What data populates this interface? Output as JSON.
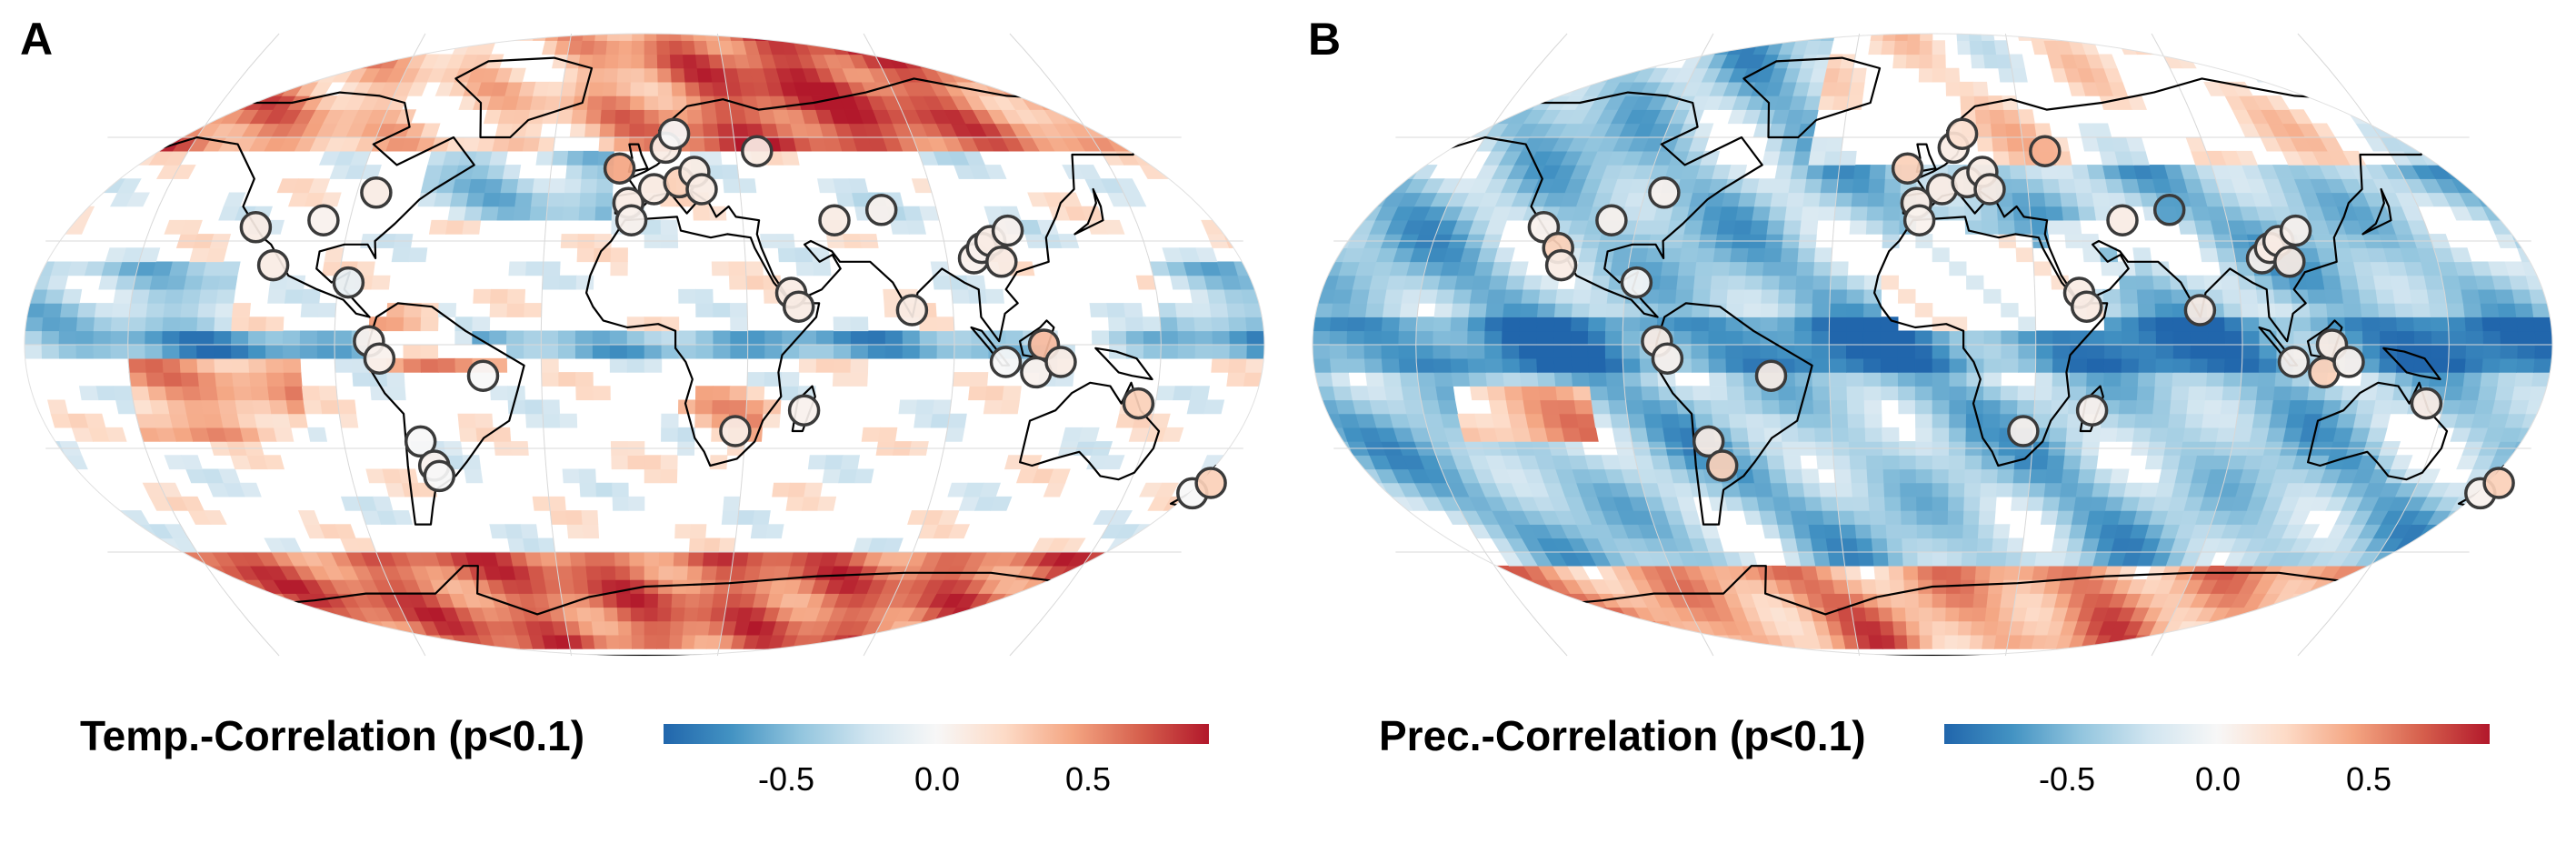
{
  "panels": [
    {
      "letter": "A",
      "colorbar_title": "Temp.-Correlation (p<0.1)",
      "colorbar_ticks": [
        "-0.5",
        "0.0",
        "0.5"
      ],
      "colorbar_range": [
        -0.9,
        0.9
      ],
      "pattern": "temperature",
      "sites": [
        {
          "lon": -118,
          "lat": 34,
          "r": 0.1
        },
        {
          "lon": -110,
          "lat": 23,
          "r": 0.1
        },
        {
          "lon": -98,
          "lat": 36,
          "r": 0.05
        },
        {
          "lon": -84,
          "lat": 44,
          "r": 0.1
        },
        {
          "lon": -87,
          "lat": 18,
          "r": -0.1
        },
        {
          "lon": -80,
          "lat": 1,
          "r": 0.05
        },
        {
          "lon": -77,
          "lat": -4,
          "r": 0.05
        },
        {
          "lon": -67,
          "lat": -28,
          "r": 0.0
        },
        {
          "lon": -64,
          "lat": -35,
          "r": 0.05
        },
        {
          "lon": -63,
          "lat": -38,
          "r": 0.0
        },
        {
          "lon": -47,
          "lat": -9,
          "r": 0.0
        },
        {
          "lon": -8,
          "lat": 51,
          "r": 0.5
        },
        {
          "lon": -5,
          "lat": 41,
          "r": 0.1
        },
        {
          "lon": -4,
          "lat": 36,
          "r": 0.05
        },
        {
          "lon": 3,
          "lat": 45,
          "r": 0.1
        },
        {
          "lon": 7,
          "lat": 57,
          "r": 0.1
        },
        {
          "lon": 10,
          "lat": 61,
          "r": 0.0
        },
        {
          "lon": 11,
          "lat": 47,
          "r": 0.3
        },
        {
          "lon": 16,
          "lat": 50,
          "r": 0.1
        },
        {
          "lon": 18,
          "lat": 45,
          "r": 0.1
        },
        {
          "lon": 43,
          "lat": 15,
          "r": 0.1
        },
        {
          "lon": 45,
          "lat": 11,
          "r": 0.1
        },
        {
          "lon": 37,
          "lat": 56,
          "r": 0.1
        },
        {
          "lon": 58,
          "lat": 36,
          "r": 0.1
        },
        {
          "lon": 73,
          "lat": 39,
          "r": 0.05
        },
        {
          "lon": 78,
          "lat": 10,
          "r": 0.1
        },
        {
          "lon": 98,
          "lat": 25,
          "r": 0.05
        },
        {
          "lon": 101,
          "lat": 28,
          "r": 0.05
        },
        {
          "lon": 104,
          "lat": 30,
          "r": 0.1
        },
        {
          "lon": 106,
          "lat": 24,
          "r": 0.1
        },
        {
          "lon": 110,
          "lat": 33,
          "r": 0.05
        },
        {
          "lon": 105,
          "lat": -5,
          "r": 0.0
        },
        {
          "lon": 116,
          "lat": 0,
          "r": 0.4
        },
        {
          "lon": 114,
          "lat": -8,
          "r": 0.05
        },
        {
          "lon": 121,
          "lat": -5,
          "r": 0.1
        },
        {
          "lon": 145,
          "lat": -17,
          "r": 0.3
        },
        {
          "lon": 47,
          "lat": -19,
          "r": 0.05
        },
        {
          "lon": 27,
          "lat": -25,
          "r": 0.1
        },
        {
          "lon": 171,
          "lat": -43,
          "r": 0.0
        },
        {
          "lon": 175,
          "lat": -40,
          "r": 0.3
        }
      ]
    },
    {
      "letter": "B",
      "colorbar_title": "Prec.-Correlation (p<0.1)",
      "colorbar_ticks": [
        "-0.5",
        "0.0",
        "0.5"
      ],
      "colorbar_range": [
        -0.9,
        0.9
      ],
      "pattern": "precipitation",
      "sites": [
        {
          "lon": -118,
          "lat": 34,
          "r": 0.05
        },
        {
          "lon": -112,
          "lat": 28,
          "r": 0.3
        },
        {
          "lon": -110,
          "lat": 23,
          "r": 0.1
        },
        {
          "lon": -98,
          "lat": 36,
          "r": 0.05
        },
        {
          "lon": -84,
          "lat": 44,
          "r": 0.05
        },
        {
          "lon": -87,
          "lat": 18,
          "r": 0.0
        },
        {
          "lon": -80,
          "lat": 1,
          "r": 0.1
        },
        {
          "lon": -77,
          "lat": -4,
          "r": 0.05
        },
        {
          "lon": -67,
          "lat": -28,
          "r": 0.1
        },
        {
          "lon": -64,
          "lat": -35,
          "r": 0.3
        },
        {
          "lon": -47,
          "lat": -9,
          "r": 0.1
        },
        {
          "lon": -8,
          "lat": 51,
          "r": 0.3
        },
        {
          "lon": -5,
          "lat": 41,
          "r": 0.1
        },
        {
          "lon": -4,
          "lat": 36,
          "r": 0.05
        },
        {
          "lon": 3,
          "lat": 45,
          "r": 0.1
        },
        {
          "lon": 7,
          "lat": 57,
          "r": 0.1
        },
        {
          "lon": 10,
          "lat": 61,
          "r": 0.2
        },
        {
          "lon": 11,
          "lat": 47,
          "r": 0.1
        },
        {
          "lon": 16,
          "lat": 50,
          "r": 0.1
        },
        {
          "lon": 18,
          "lat": 45,
          "r": 0.1
        },
        {
          "lon": 43,
          "lat": 15,
          "r": 0.1
        },
        {
          "lon": 45,
          "lat": 11,
          "r": 0.1
        },
        {
          "lon": 37,
          "lat": 56,
          "r": 0.45
        },
        {
          "lon": 58,
          "lat": 36,
          "r": 0.1
        },
        {
          "lon": 73,
          "lat": 39,
          "r": -0.7
        },
        {
          "lon": 78,
          "lat": 10,
          "r": 0.1
        },
        {
          "lon": 98,
          "lat": 25,
          "r": 0.05
        },
        {
          "lon": 101,
          "lat": 28,
          "r": 0.1
        },
        {
          "lon": 104,
          "lat": 30,
          "r": 0.1
        },
        {
          "lon": 106,
          "lat": 24,
          "r": 0.1
        },
        {
          "lon": 110,
          "lat": 33,
          "r": 0.05
        },
        {
          "lon": 105,
          "lat": -5,
          "r": 0.05
        },
        {
          "lon": 116,
          "lat": 0,
          "r": 0.1
        },
        {
          "lon": 114,
          "lat": -8,
          "r": 0.3
        },
        {
          "lon": 121,
          "lat": -5,
          "r": 0.05
        },
        {
          "lon": 145,
          "lat": -17,
          "r": 0.1
        },
        {
          "lon": 47,
          "lat": -19,
          "r": 0.05
        },
        {
          "lon": 27,
          "lat": -25,
          "r": 0.05
        },
        {
          "lon": 171,
          "lat": -43,
          "r": 0.05
        },
        {
          "lon": 175,
          "lat": -40,
          "r": 0.3
        }
      ]
    }
  ]
}
